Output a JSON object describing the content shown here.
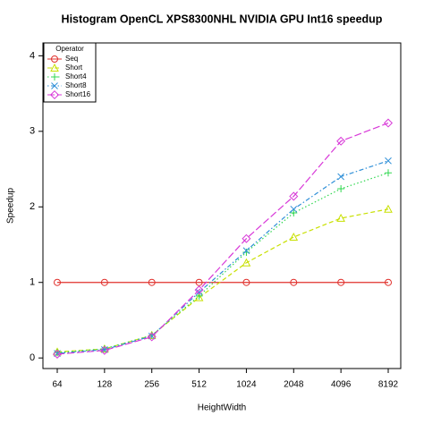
{
  "chart_data": {
    "type": "line",
    "title": "Histogram OpenCL XPS8300NHL NVIDIA GPU Int16 speedup",
    "x_label": "HeightWidth",
    "y_label": "Speedup",
    "categories": [
      "64",
      "128",
      "256",
      "512",
      "1024",
      "2048",
      "4096",
      "8192"
    ],
    "ylim": [
      -0.14,
      4.17
    ],
    "yticks": [
      0,
      1,
      2,
      3,
      4
    ],
    "legend_title": "Operator",
    "legend_position": "top-left",
    "series": [
      {
        "name": "Seq",
        "color": "#e0302c",
        "dash": "solid",
        "marker": "circle",
        "values": [
          1,
          1,
          1,
          1,
          1,
          1,
          1,
          1
        ]
      },
      {
        "name": "Short",
        "color": "#c8e000",
        "dash": "dashed",
        "marker": "triangle",
        "values": [
          0.08,
          0.12,
          0.3,
          0.8,
          1.26,
          1.6,
          1.85,
          1.97
        ]
      },
      {
        "name": "Short4",
        "color": "#30d850",
        "dash": "dotted",
        "marker": "plus",
        "values": [
          0.07,
          0.12,
          0.3,
          0.82,
          1.4,
          1.92,
          2.24,
          2.45
        ]
      },
      {
        "name": "Short8",
        "color": "#3090d8",
        "dash": "dotdash",
        "marker": "cross",
        "values": [
          0.06,
          0.11,
          0.29,
          0.87,
          1.42,
          1.97,
          2.4,
          2.61
        ]
      },
      {
        "name": "Short16",
        "color": "#d838d8",
        "dash": "longdash",
        "marker": "diamond",
        "values": [
          0.05,
          0.1,
          0.28,
          0.9,
          1.58,
          2.14,
          2.87,
          3.11
        ]
      }
    ]
  }
}
